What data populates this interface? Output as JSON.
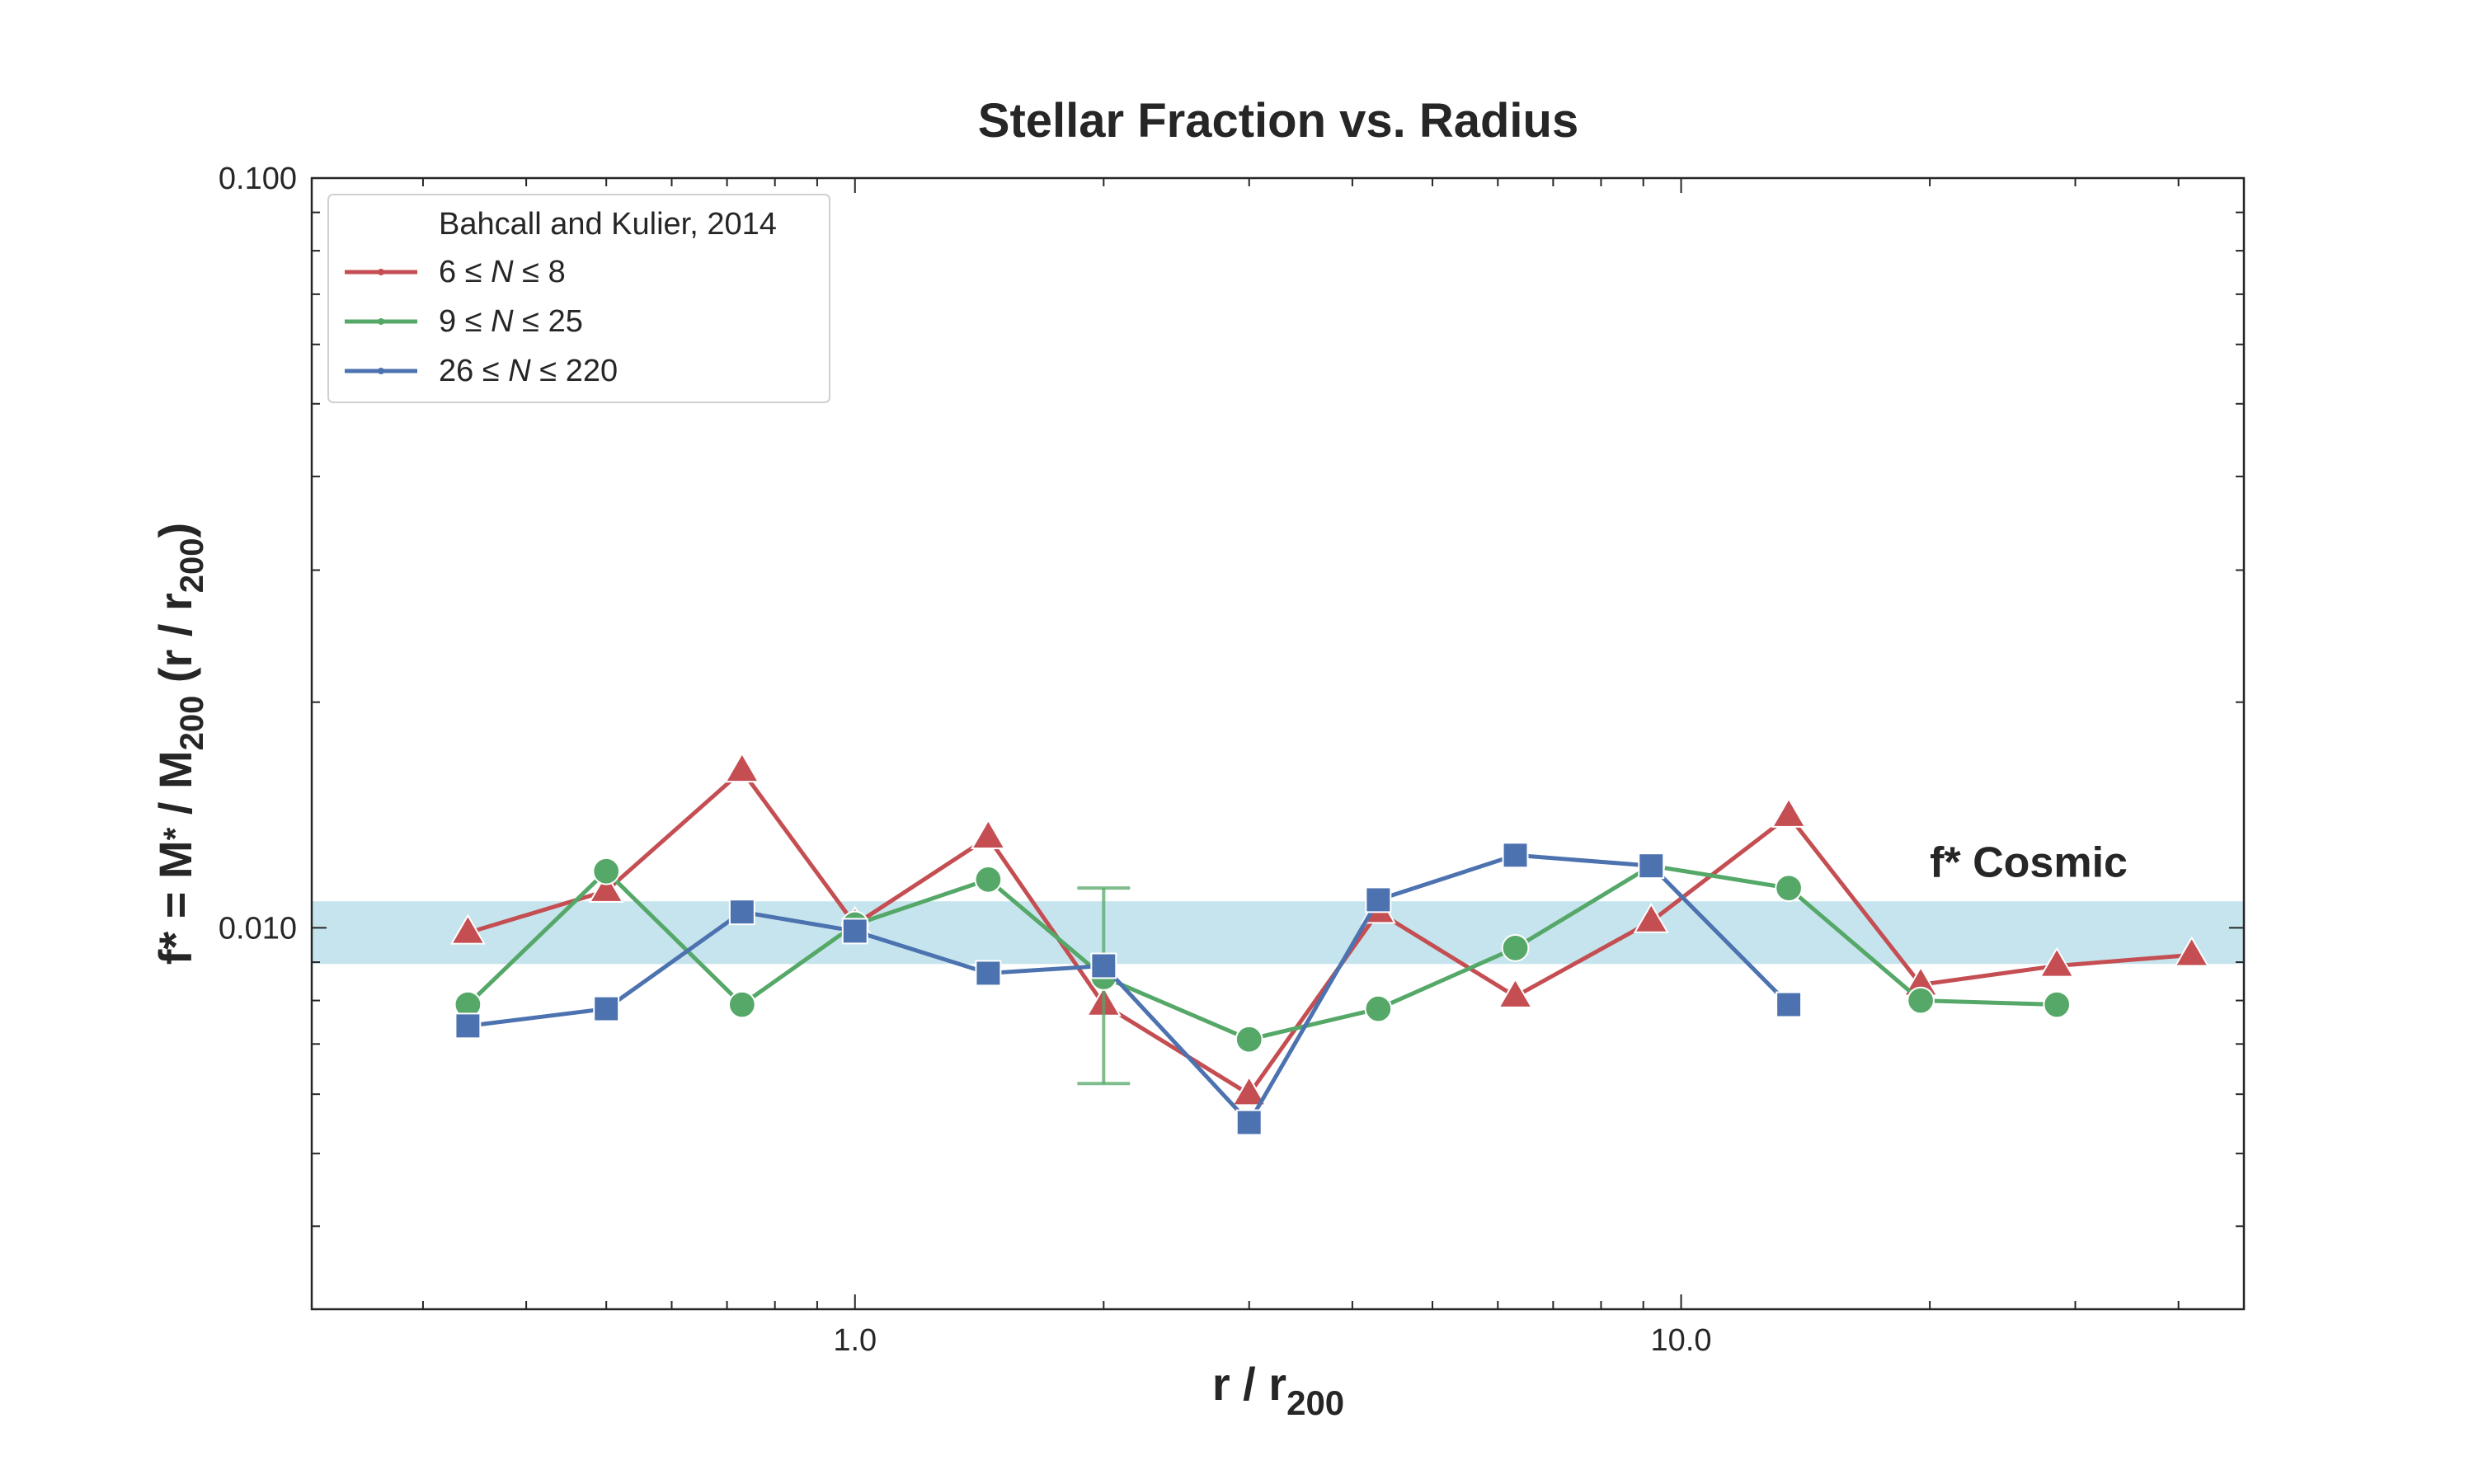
{
  "chart_data": {
    "type": "line",
    "title": "Stellar Fraction vs. Radius",
    "xlabel": "r / r",
    "xlabel_sub": "200",
    "ylabel_parts": [
      "f* = M",
      "*",
      " / M",
      "200",
      " (r / r",
      "200",
      ")"
    ],
    "xscale": "log",
    "yscale": "log",
    "xlim": [
      0.22,
      48
    ],
    "ylim": [
      0.0031,
      0.1
    ],
    "xticks": [
      {
        "value": 1.0,
        "label": "1.0"
      },
      {
        "value": 10.0,
        "label": "10.0"
      }
    ],
    "yticks": [
      {
        "value": 0.01,
        "label": "0.010"
      },
      {
        "value": 0.1,
        "label": "0.100"
      }
    ],
    "grid": false,
    "legend": {
      "title": "Bahcall and Kulier, 2014",
      "placement": "top-left"
    },
    "band": {
      "y_low": 0.00895,
      "y_high": 0.01085,
      "color": "#add8e6"
    },
    "annotations": [
      {
        "text": "f* Cosmic",
        "x": 20,
        "y": 0.0117
      }
    ],
    "series": [
      {
        "name": "6 ≤ N ≤ 8",
        "name_parts": {
          "lo": "6",
          "var": "N",
          "hi": "8"
        },
        "color": "#c44e52",
        "marker": "triangle",
        "x": [
          0.34,
          0.5,
          0.73,
          1.0,
          1.45,
          2.0,
          3.0,
          4.3,
          6.3,
          9.2,
          13.5,
          19.5,
          28.5,
          41.5
        ],
        "y": [
          0.00985,
          0.0112,
          0.0162,
          0.0101,
          0.0132,
          0.0079,
          0.006,
          0.0105,
          0.0081,
          0.0102,
          0.0141,
          0.0084,
          0.0089,
          0.0092
        ]
      },
      {
        "name": "9 ≤ N ≤ 25",
        "name_parts": {
          "lo": "9",
          "var": "N",
          "hi": "25"
        },
        "color": "#55a868",
        "marker": "circle",
        "x": [
          0.34,
          0.5,
          0.73,
          1.0,
          1.45,
          2.0,
          3.0,
          4.3,
          6.3,
          9.2,
          13.5,
          19.5,
          28.5
        ],
        "y": [
          0.0079,
          0.0119,
          0.0079,
          0.0101,
          0.0116,
          0.0086,
          0.0071,
          0.0078,
          0.0094,
          0.0121,
          0.0113,
          0.008,
          0.0079
        ],
        "error_bars": [
          {
            "x": 2.0,
            "y_low": 0.0062,
            "y_high": 0.0113
          }
        ]
      },
      {
        "name": "26 ≤ N ≤ 220",
        "name_parts": {
          "lo": "26",
          "var": "N",
          "hi": "220"
        },
        "color": "#4c72b0",
        "marker": "square",
        "x": [
          0.34,
          0.5,
          0.73,
          1.0,
          1.45,
          2.0,
          3.0,
          4.3,
          6.3,
          9.2,
          13.5
        ],
        "y": [
          0.0074,
          0.0078,
          0.0105,
          0.0099,
          0.0087,
          0.0089,
          0.0055,
          0.0109,
          0.0125,
          0.0121,
          0.0079
        ]
      }
    ]
  }
}
